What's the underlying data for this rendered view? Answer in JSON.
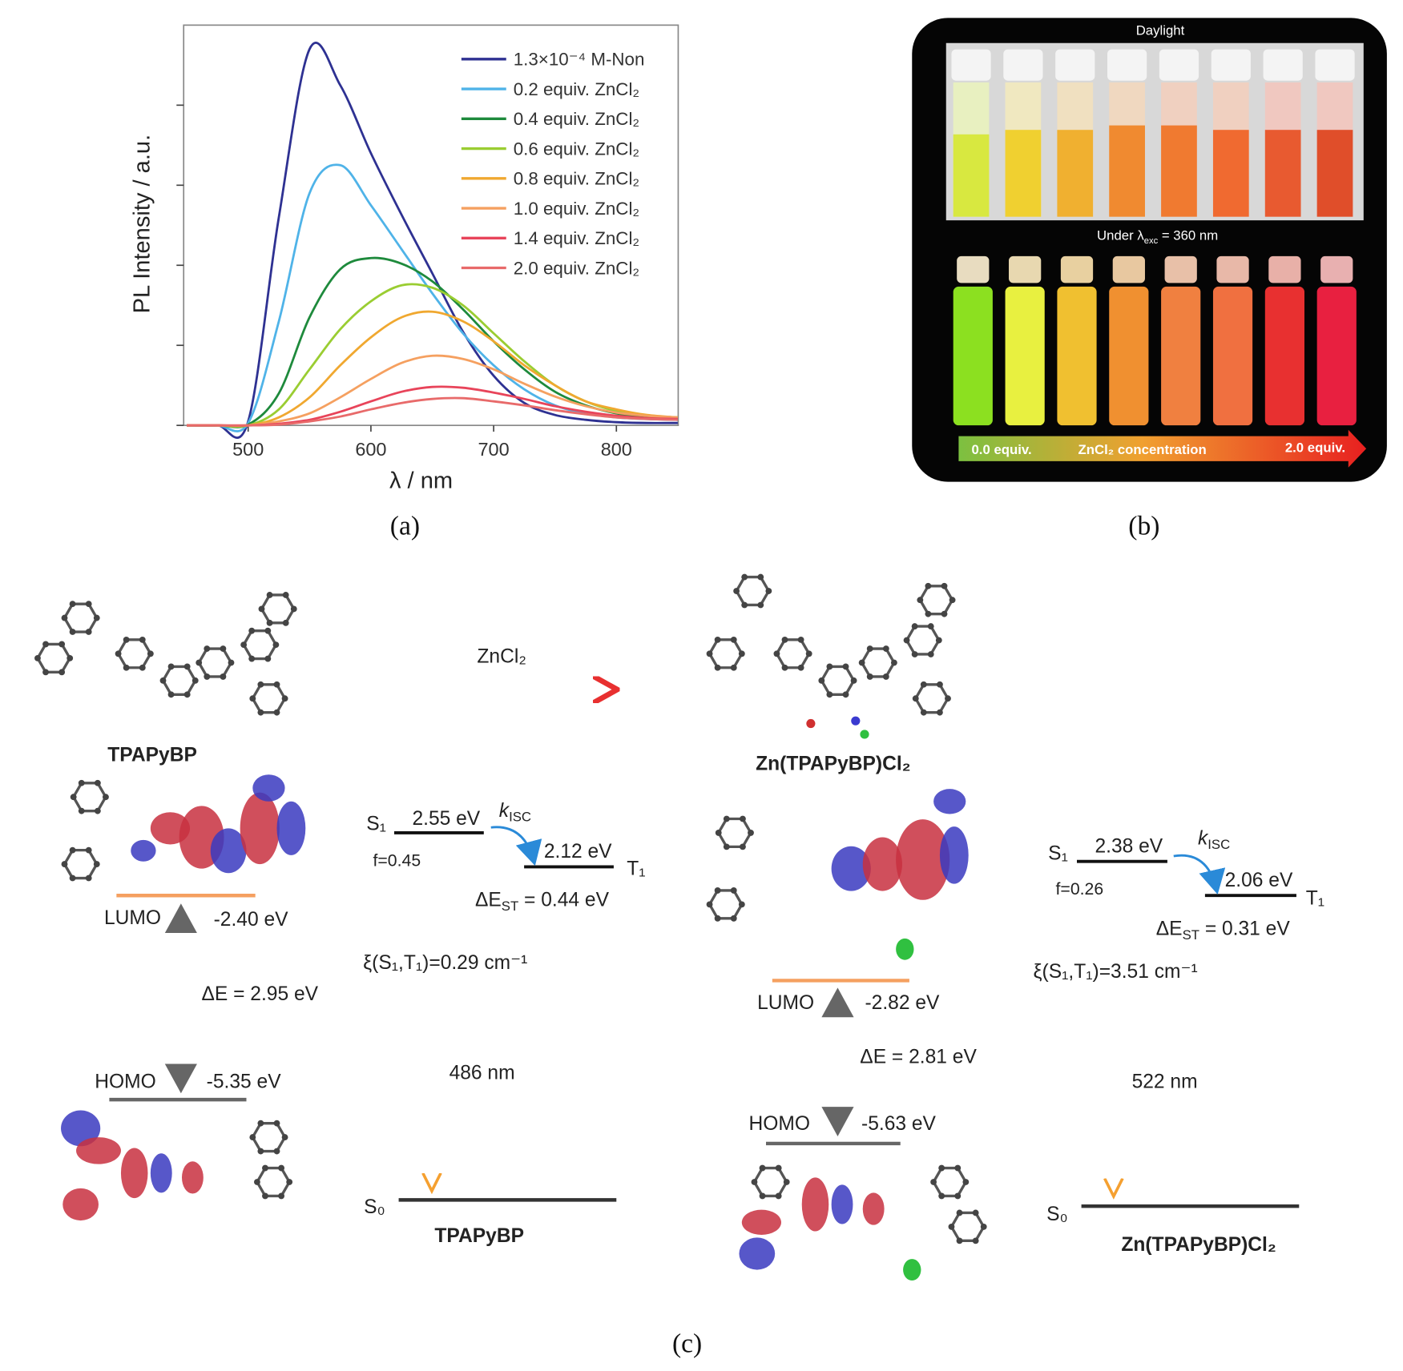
{
  "chart_data": {
    "type": "line",
    "xlabel": "λ / nm",
    "ylabel": "PL Intensity / a.u.",
    "caption": "(a)",
    "x": [
      450,
      475,
      500,
      525,
      550,
      575,
      600,
      625,
      650,
      675,
      700,
      725,
      750,
      775,
      800,
      825,
      850
    ],
    "xlim": [
      450,
      850
    ],
    "xticks": [
      500,
      600,
      700,
      800
    ],
    "ylim": [
      0,
      5
    ],
    "yticks": [
      0,
      1,
      2,
      3,
      4
    ],
    "legend": "upper right",
    "series": [
      {
        "name": "1.3×10⁻⁴ M-Non",
        "color": "#2e3192",
        "values": [
          0,
          0,
          0.05,
          2.6,
          4.7,
          4.25,
          3.4,
          2.63,
          1.9,
          1.17,
          0.62,
          0.28,
          0.13,
          0.07,
          0.04,
          0.03,
          0.03
        ]
      },
      {
        "name": "0.2 equiv. ZnCl₂",
        "color": "#4fb3e8",
        "values": [
          0,
          0,
          0.03,
          1.3,
          2.9,
          3.25,
          2.75,
          2.2,
          1.65,
          1.15,
          0.75,
          0.45,
          0.25,
          0.15,
          0.1,
          0.08,
          0.07
        ]
      },
      {
        "name": "0.4 equiv. ZnCl₂",
        "color": "#1e8a3c",
        "values": [
          0,
          0,
          0.01,
          0.4,
          1.35,
          1.95,
          2.09,
          2.02,
          1.8,
          1.45,
          1.05,
          0.7,
          0.42,
          0.25,
          0.15,
          0.1,
          0.08
        ]
      },
      {
        "name": "0.6 equiv. ZnCl₂",
        "color": "#9acd32",
        "values": [
          0,
          0,
          0,
          0.2,
          0.7,
          1.2,
          1.55,
          1.75,
          1.72,
          1.5,
          1.15,
          0.8,
          0.5,
          0.3,
          0.18,
          0.12,
          0.1
        ]
      },
      {
        "name": "0.8 equiv. ZnCl₂",
        "color": "#f0a830",
        "values": [
          0,
          0,
          0,
          0.1,
          0.35,
          0.75,
          1.1,
          1.35,
          1.42,
          1.3,
          1.05,
          0.75,
          0.5,
          0.3,
          0.2,
          0.13,
          0.1
        ]
      },
      {
        "name": "1.0 equiv. ZnCl₂",
        "color": "#f5a060",
        "values": [
          0,
          0,
          0,
          0.05,
          0.15,
          0.35,
          0.58,
          0.78,
          0.87,
          0.83,
          0.7,
          0.52,
          0.36,
          0.24,
          0.16,
          0.12,
          0.1
        ]
      },
      {
        "name": "1.4 equiv. ZnCl₂",
        "color": "#e8445a",
        "values": [
          0,
          0,
          0,
          0.02,
          0.07,
          0.17,
          0.3,
          0.42,
          0.48,
          0.47,
          0.41,
          0.33,
          0.24,
          0.17,
          0.12,
          0.09,
          0.08
        ]
      },
      {
        "name": "2.0 equiv. ZnCl₂",
        "color": "#e86a6a",
        "values": [
          0,
          0,
          0,
          0.01,
          0.05,
          0.11,
          0.2,
          0.28,
          0.33,
          0.34,
          0.3,
          0.25,
          0.19,
          0.14,
          0.1,
          0.08,
          0.07
        ]
      }
    ]
  },
  "panel_b": {
    "caption": "(b)",
    "daylight": "Daylight",
    "uv_label": {
      "pre": "Under λ",
      "sub": "exc",
      "post": " = 360 nm"
    },
    "scale_start": "0.0 equiv.",
    "scale_label": "ZnCl₂ concentration",
    "scale_end": "2.0 equiv."
  },
  "panel_c": {
    "caption": "(c)",
    "reagent": "ZnCl₂",
    "left": {
      "name": "TPAPyBP",
      "lumo": "LUMO",
      "lumo_energy": "-2.40 eV",
      "gap": "ΔE = 2.95 eV",
      "homo": "HOMO",
      "homo_energy": "-5.35 eV",
      "s1": "S₁",
      "s1_energy": "2.55 eV",
      "k_isc": {
        "main": "k",
        "sub": "ISC"
      },
      "t1": "T₁",
      "t1_energy": "2.12 eV",
      "oscillator": "f=0.45",
      "delta_est": {
        "main": "ΔE",
        "sub": "ST",
        "rest": " = 0.44 eV"
      },
      "soc": "ξ(S₁,T₁)=0.29 cm⁻¹",
      "emission": "486 nm",
      "s0": "S₀",
      "diagram_label": "TPAPyBP"
    },
    "right": {
      "name": "Zn(TPAPyBP)Cl₂",
      "lumo": "LUMO",
      "lumo_energy": "-2.82 eV",
      "gap": "ΔE = 2.81 eV",
      "homo": "HOMO",
      "homo_energy": "-5.63 eV",
      "s1": "S₁",
      "s1_energy": "2.38 eV",
      "k_isc": {
        "main": "k",
        "sub": "ISC"
      },
      "t1": "T₁",
      "t1_energy": "2.06 eV",
      "oscillator": "f=0.26",
      "delta_est": {
        "main": "ΔE",
        "sub": "ST",
        "rest": " = 0.31 eV"
      },
      "soc": "ξ(S₁,T₁)=3.51 cm⁻¹",
      "emission": "522 nm",
      "s0": "S₀",
      "diagram_label": "Zn(TPAPyBP)Cl₂"
    }
  }
}
